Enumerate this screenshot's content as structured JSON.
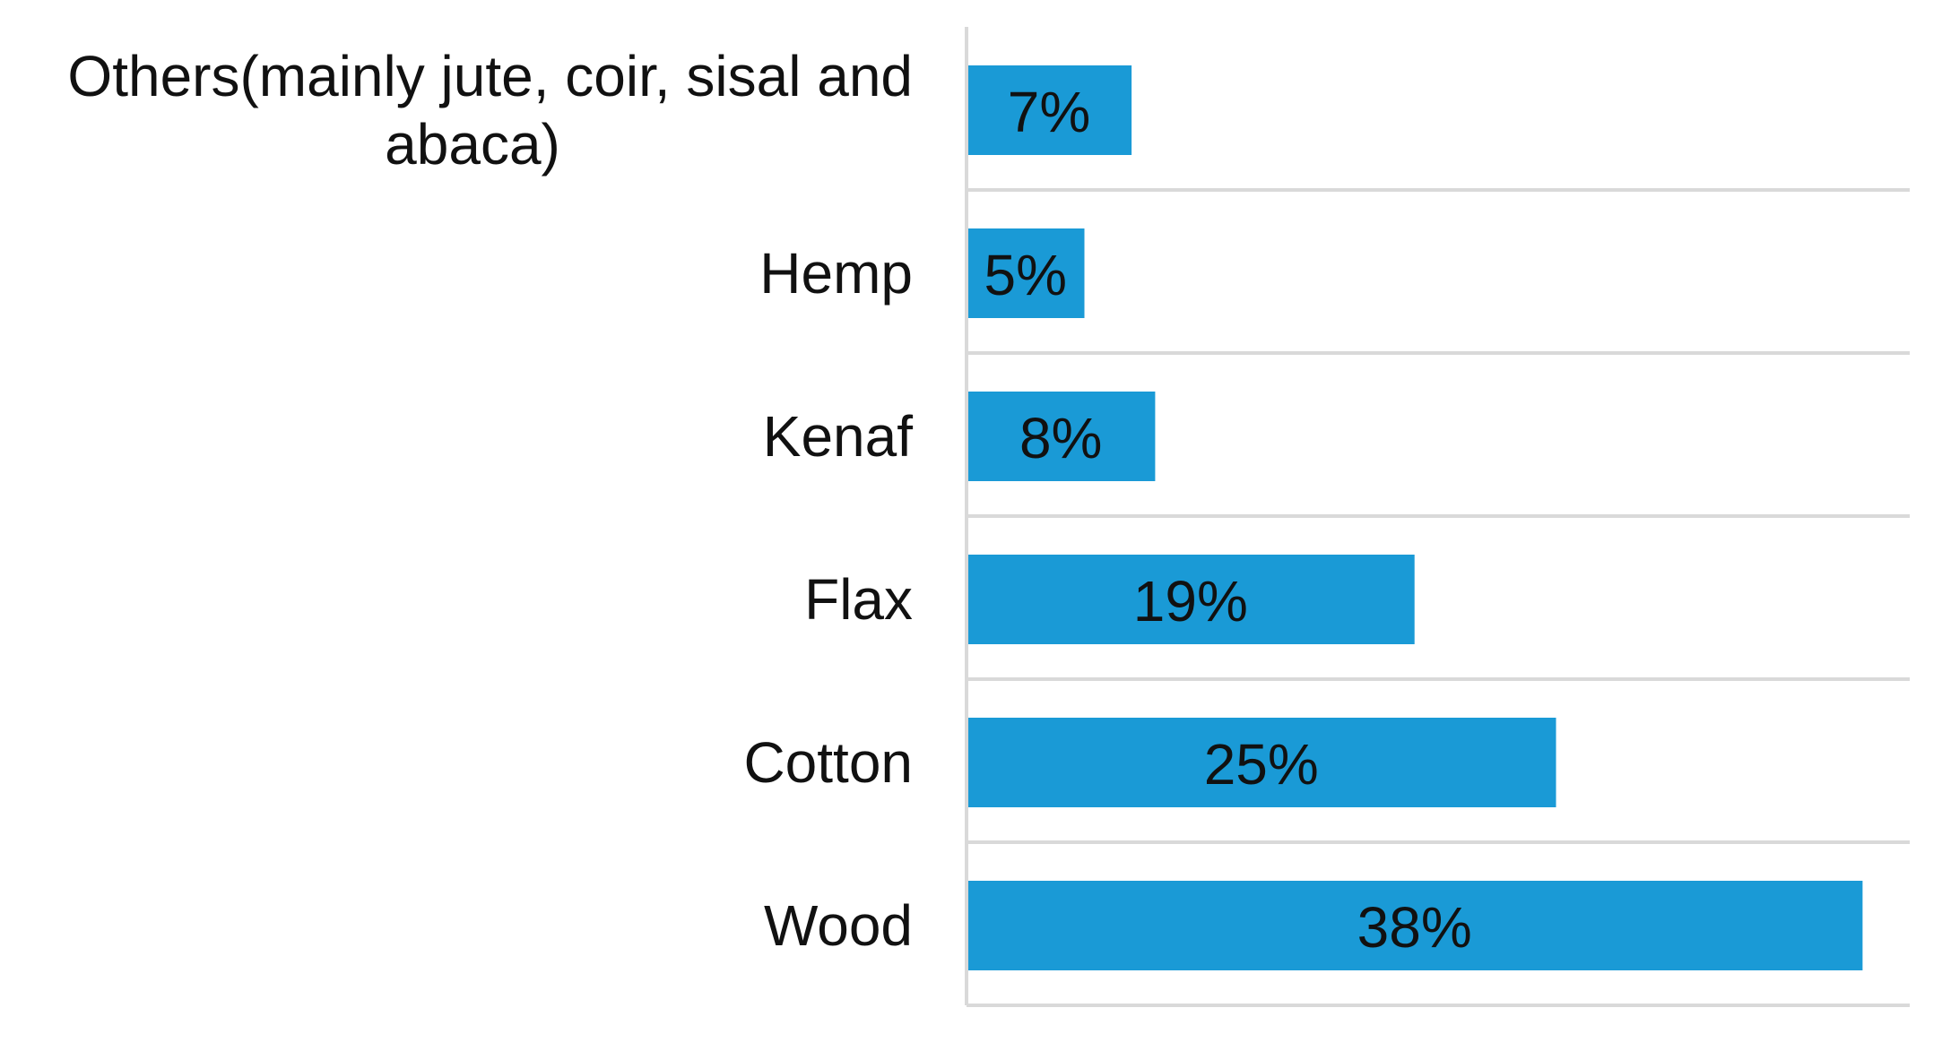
{
  "chart_data": {
    "type": "bar",
    "orientation": "horizontal",
    "categories": [
      [
        "Others(mainly jute, coir, sisal and",
        "abaca)"
      ],
      [
        "Hemp"
      ],
      [
        "Kenaf"
      ],
      [
        "Flax"
      ],
      [
        "Cotton"
      ],
      [
        "Wood"
      ]
    ],
    "values": [
      7,
      5,
      8,
      19,
      25,
      38
    ],
    "data_labels": [
      "7%",
      "5%",
      "8%",
      "19%",
      "25%",
      "38%"
    ],
    "title": "",
    "xlabel": "",
    "ylabel": "",
    "xlim": [
      0,
      40
    ],
    "grid": "horizontal",
    "legend": "none",
    "colors": {
      "bar": "#1a9ad6",
      "grid": "#d9d9d9",
      "text": "#111111"
    }
  }
}
